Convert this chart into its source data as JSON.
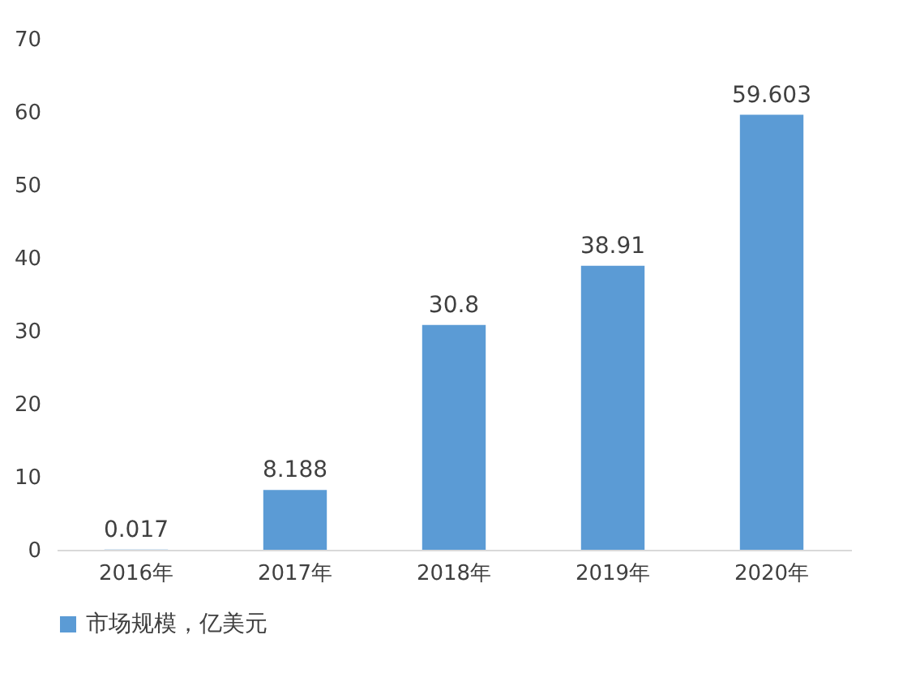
{
  "chart_data": {
    "type": "bar",
    "categories": [
      "2016年",
      "2017年",
      "2018年",
      "2019年",
      "2020年"
    ],
    "series": [
      {
        "name": "市场规模，亿美元",
        "color": "#5b9bd5",
        "values": [
          0.017,
          8.188,
          30.8,
          38.91,
          59.603
        ]
      }
    ],
    "ylim": [
      0,
      70
    ],
    "yticks": [
      0,
      10,
      20,
      30,
      40,
      50,
      60,
      70
    ],
    "data_labels": true,
    "legend": "bottom"
  }
}
